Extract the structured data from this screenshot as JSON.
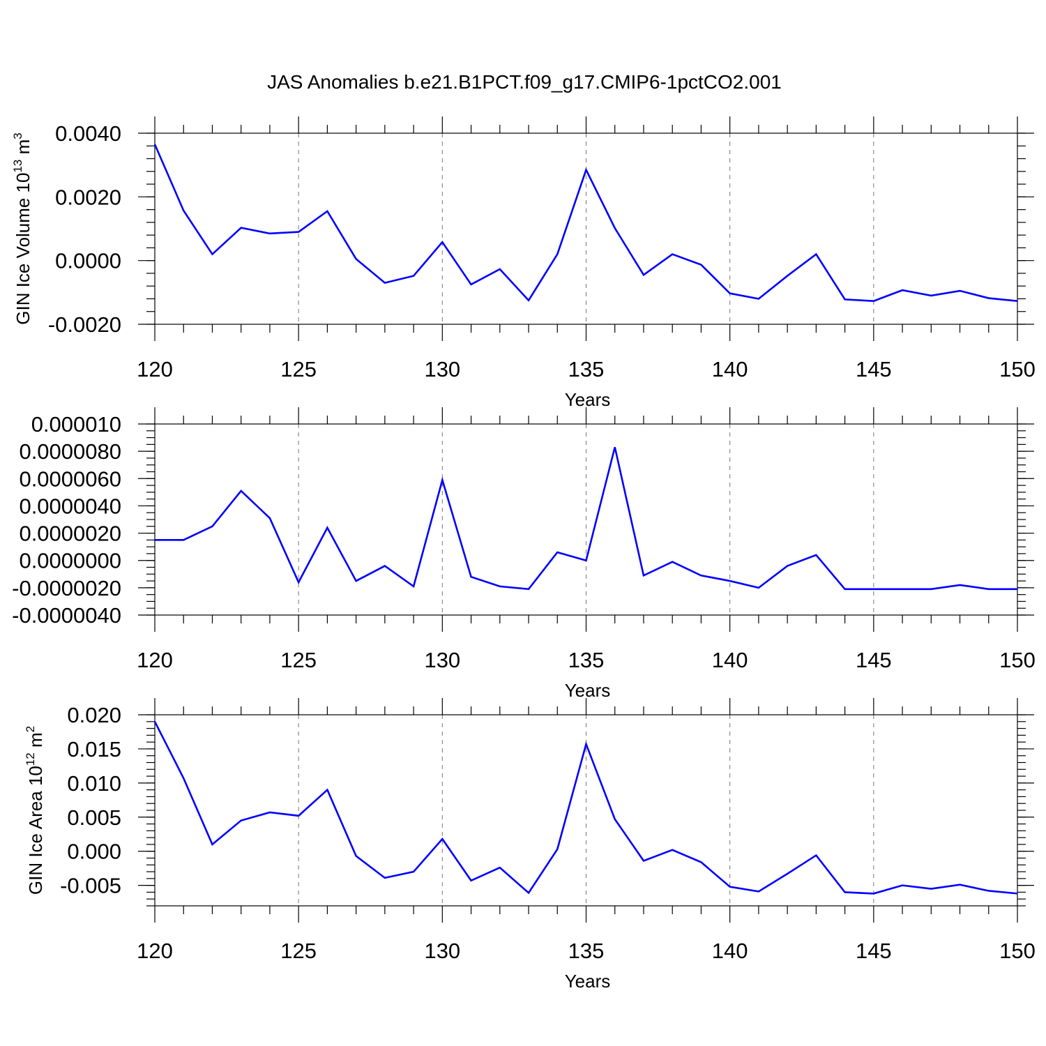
{
  "figure": {
    "title": "JAS Anomalies b.e21.B1PCT.f09_g17.CMIP6-1pctCO2.001"
  },
  "colors": {
    "series": "#0000ff",
    "grid": "#777777",
    "axis": "#000000"
  },
  "chart_data": [
    {
      "type": "line",
      "title": "",
      "xlabel": "Years",
      "ylabel": "GIN Ice Volume 10^13 m^3",
      "ylabel_parts": {
        "base": "GIN Ice Volume 10",
        "exp1": "13",
        "mid": " m",
        "exp2": "3"
      },
      "xlim": [
        120,
        150
      ],
      "ylim": [
        -0.002,
        0.004
      ],
      "x_ticks": [
        120,
        125,
        130,
        135,
        140,
        145,
        150
      ],
      "x_tick_labels": [
        "120",
        "125",
        "130",
        "135",
        "140",
        "145",
        "150"
      ],
      "y_ticks": [
        -0.002,
        0.0,
        0.002,
        0.004
      ],
      "y_tick_labels": [
        "-0.0020",
        "0.0000",
        "0.0020",
        "0.0040"
      ],
      "y_minor_step": 0.0004,
      "grid": "vertical dashed at major x ticks",
      "x": [
        120,
        121,
        122,
        123,
        124,
        125,
        126,
        127,
        128,
        129,
        130,
        131,
        132,
        133,
        134,
        135,
        136,
        137,
        138,
        139,
        140,
        141,
        142,
        143,
        144,
        145,
        146,
        147,
        148,
        149,
        150
      ],
      "series": [
        {
          "values": [
            0.00365,
            0.00157,
            0.0002,
            0.00103,
            0.00085,
            0.0009,
            0.00155,
            5e-05,
            -0.0007,
            -0.00048,
            0.00058,
            -0.00075,
            -0.00027,
            -0.00125,
            0.0002,
            0.00285,
            0.00102,
            -0.00045,
            0.0002,
            -0.00013,
            -0.00103,
            -0.0012,
            -0.00048,
            0.0002,
            -0.00122,
            -0.00127,
            -0.00093,
            -0.0011,
            -0.00095,
            -0.00118,
            -0.00127
          ]
        }
      ]
    },
    {
      "type": "line",
      "title": "",
      "xlabel": "Years",
      "ylabel": "",
      "xlim": [
        120,
        150
      ],
      "ylim": [
        -4e-06,
        1e-05
      ],
      "x_ticks": [
        120,
        125,
        130,
        135,
        140,
        145,
        150
      ],
      "x_tick_labels": [
        "120",
        "125",
        "130",
        "135",
        "140",
        "145",
        "150"
      ],
      "y_ticks": [
        -4e-06,
        -2e-06,
        0.0,
        2e-06,
        4e-06,
        6e-06,
        8e-06,
        1e-05
      ],
      "y_tick_labels": [
        "-0.0000040",
        "-0.0000020",
        "0.0000000",
        "0.0000020",
        "0.0000040",
        "0.0000060",
        "0.0000080",
        "0.000010"
      ],
      "y_minor_step": 5e-07,
      "grid": "vertical dashed at major x ticks",
      "x": [
        120,
        121,
        122,
        123,
        124,
        125,
        126,
        127,
        128,
        129,
        130,
        131,
        132,
        133,
        134,
        135,
        136,
        137,
        138,
        139,
        140,
        141,
        142,
        143,
        144,
        145,
        146,
        147,
        148,
        149,
        150
      ],
      "series": [
        {
          "values": [
            1.5e-06,
            1.5e-06,
            2.5e-06,
            5.1e-06,
            3.1e-06,
            -1.6e-06,
            2.4e-06,
            -1.5e-06,
            -4e-07,
            -1.9e-06,
            5.9e-06,
            -1.2e-06,
            -1.9e-06,
            -2.1e-06,
            6e-07,
            0.0,
            8.3e-06,
            -1.1e-06,
            -1e-07,
            -1.1e-06,
            -1.5e-06,
            -2e-06,
            -4e-07,
            4e-07,
            -2.1e-06,
            -2.1e-06,
            -2.1e-06,
            -2.1e-06,
            -1.8e-06,
            -2.1e-06,
            -2.1e-06
          ]
        }
      ]
    },
    {
      "type": "line",
      "title": "",
      "xlabel": "Years",
      "ylabel": "GIN Ice Area 10^12 m^2",
      "ylabel_parts": {
        "base": "GIN Ice Area 10",
        "exp1": "12",
        "mid": " m",
        "exp2": "2"
      },
      "xlim": [
        120,
        150
      ],
      "ylim": [
        -0.008,
        0.02
      ],
      "x_ticks": [
        120,
        125,
        130,
        135,
        140,
        145,
        150
      ],
      "x_tick_labels": [
        "120",
        "125",
        "130",
        "135",
        "140",
        "145",
        "150"
      ],
      "y_ticks": [
        -0.005,
        0.0,
        0.005,
        0.01,
        0.015,
        0.02
      ],
      "y_tick_labels": [
        "-0.005",
        "0.000",
        "0.005",
        "0.010",
        "0.015",
        "0.020"
      ],
      "y_minor_step": 0.001,
      "grid": "vertical dashed at major x ticks",
      "x": [
        120,
        121,
        122,
        123,
        124,
        125,
        126,
        127,
        128,
        129,
        130,
        131,
        132,
        133,
        134,
        135,
        136,
        137,
        138,
        139,
        140,
        141,
        142,
        143,
        144,
        145,
        146,
        147,
        148,
        149,
        150
      ],
      "series": [
        {
          "values": [
            0.019,
            0.0107,
            0.001,
            0.0045,
            0.0057,
            0.0052,
            0.009,
            -0.0007,
            -0.0039,
            -0.003,
            0.0018,
            -0.0043,
            -0.0024,
            -0.0061,
            0.0003,
            0.0157,
            0.0047,
            -0.0014,
            0.0002,
            -0.0016,
            -0.0052,
            -0.0059,
            -0.0033,
            -0.0006,
            -0.006,
            -0.0062,
            -0.005,
            -0.0055,
            -0.0049,
            -0.0058,
            -0.0062
          ]
        }
      ]
    }
  ]
}
